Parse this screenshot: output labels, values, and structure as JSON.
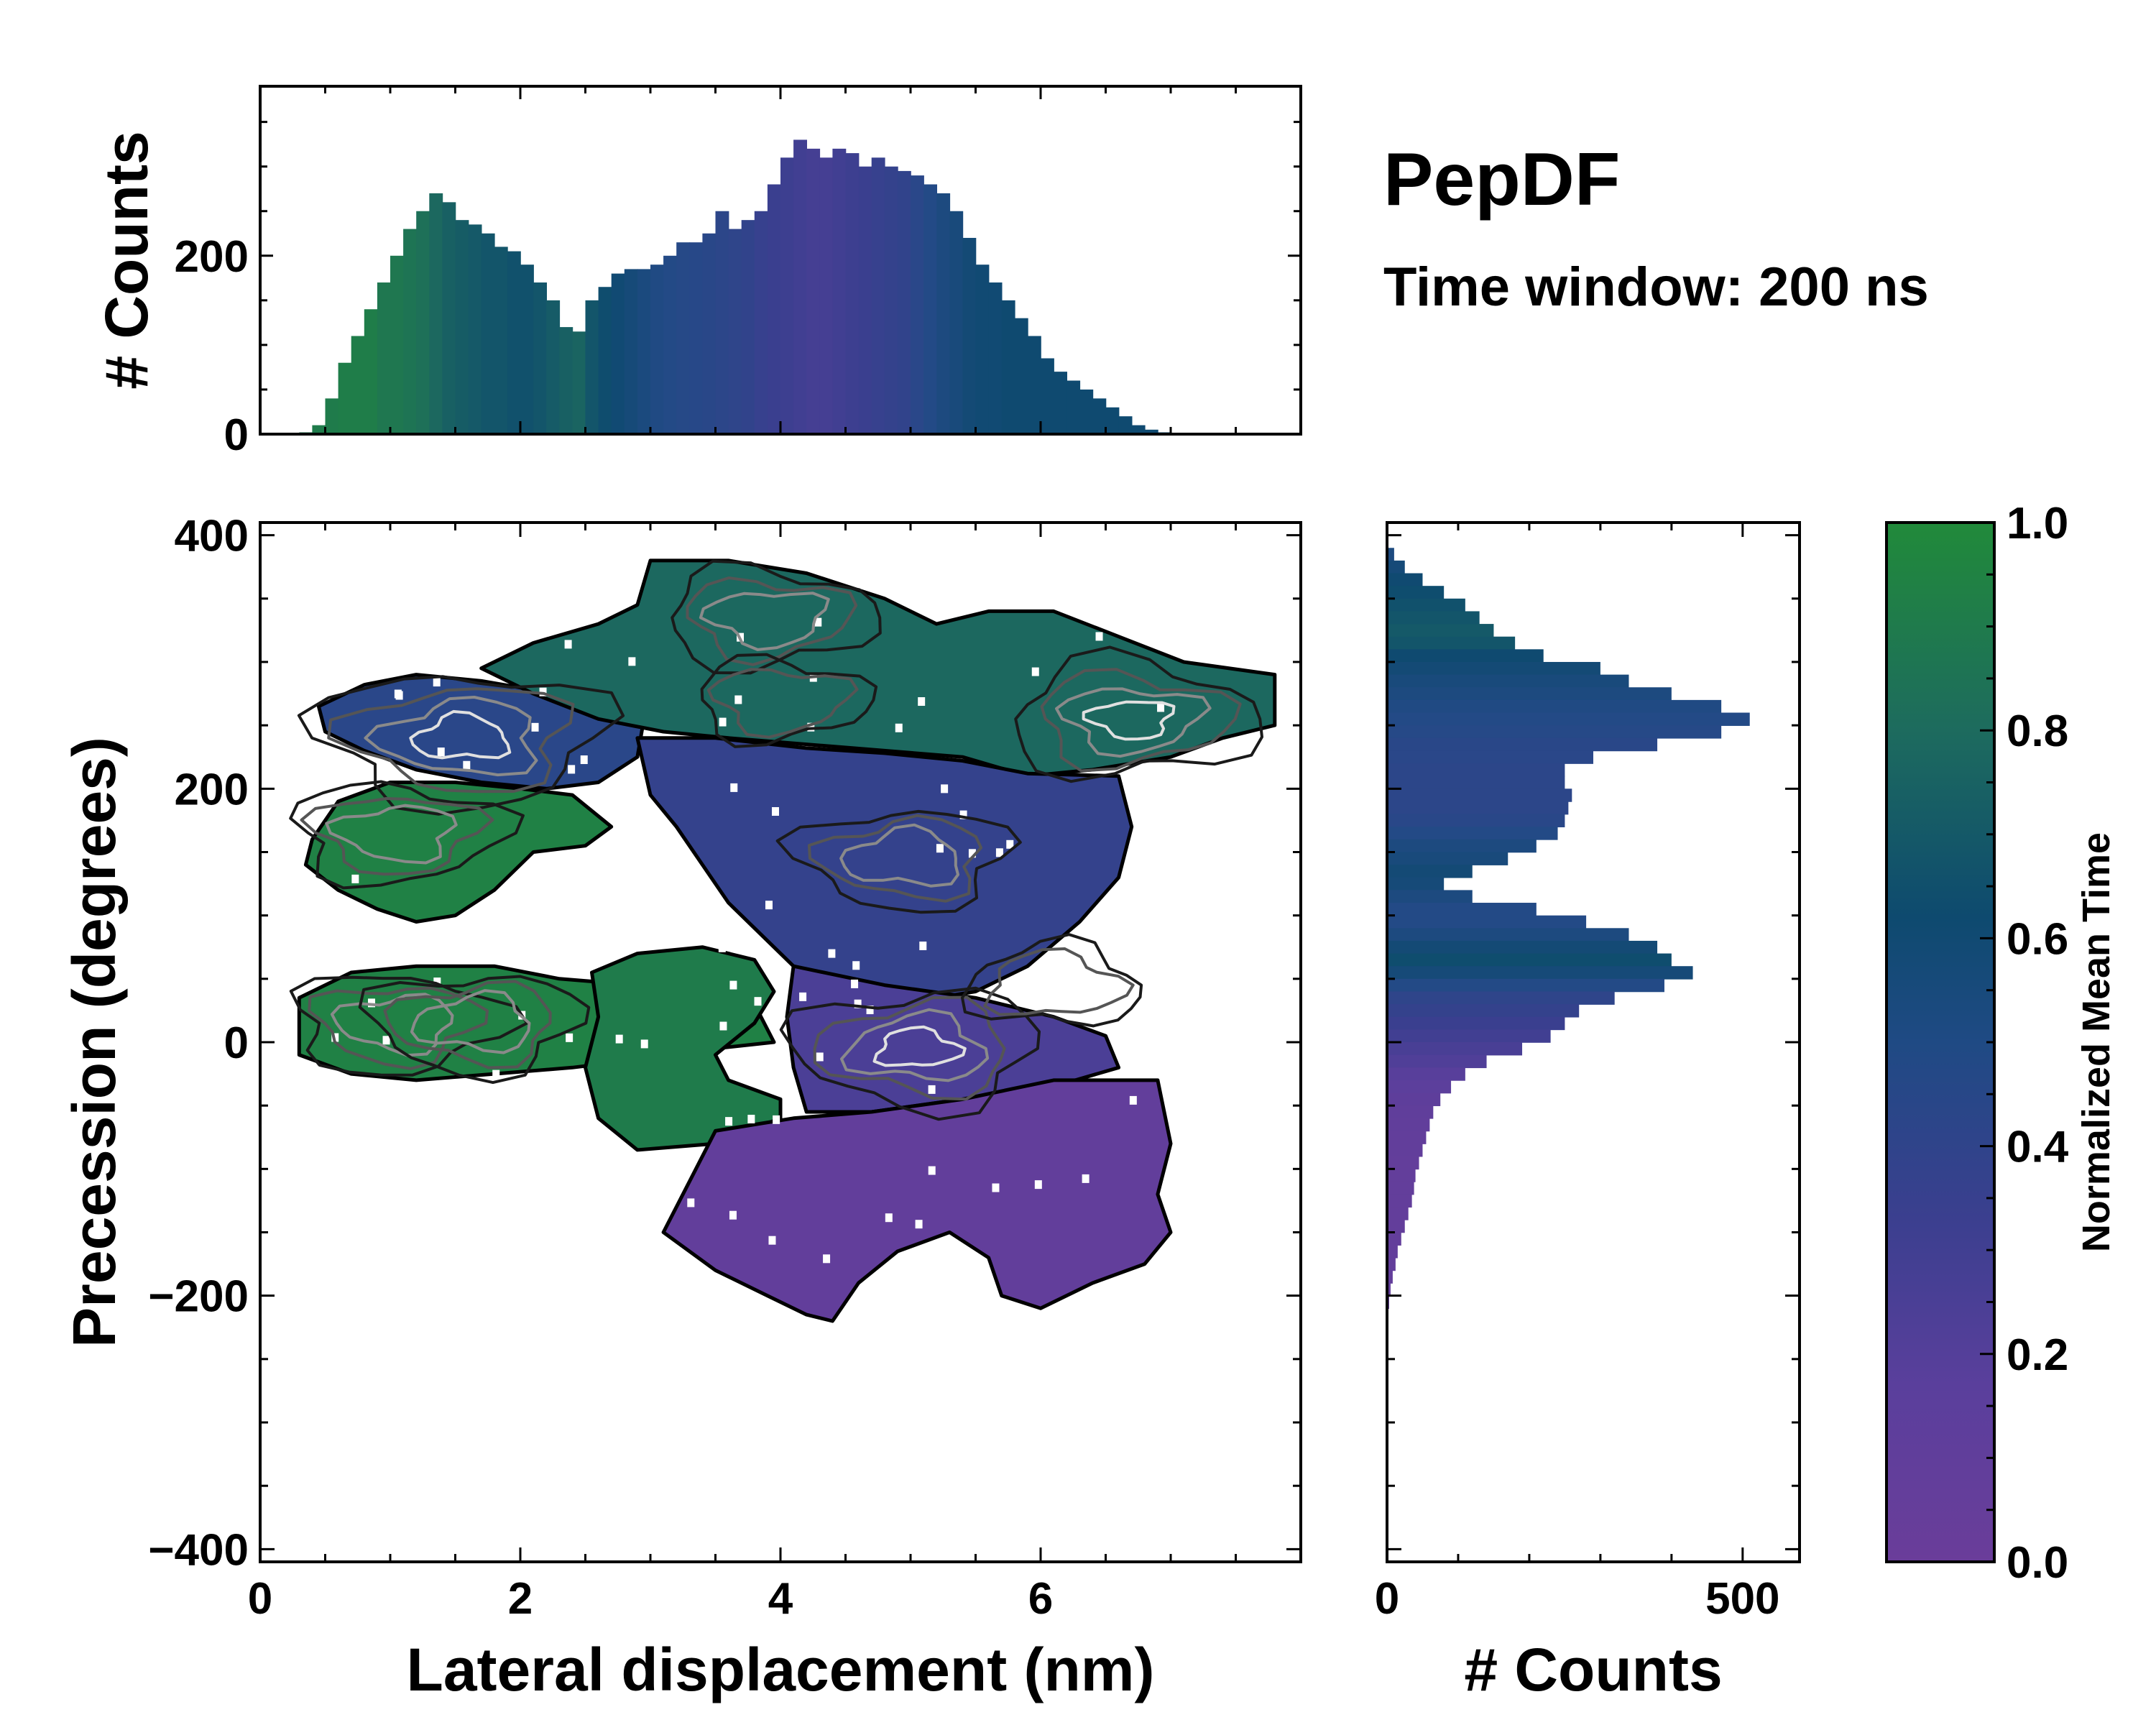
{
  "chart_data": [
    {
      "type": "histogram",
      "panel": "top-marginal",
      "title": "PepDF",
      "subtitle": "Time window: 200 ns",
      "xlabel": "",
      "ylabel": "# Counts",
      "xlim": [
        0,
        8
      ],
      "ylim": [
        0,
        390
      ],
      "yticks": [
        0,
        200
      ],
      "ytick_labels": [
        "0",
        "200"
      ],
      "bin_centers": [
        0.35,
        0.45,
        0.55,
        0.65,
        0.75,
        0.85,
        0.95,
        1.05,
        1.15,
        1.25,
        1.35,
        1.45,
        1.55,
        1.65,
        1.75,
        1.85,
        1.95,
        2.05,
        2.15,
        2.25,
        2.35,
        2.45,
        2.55,
        2.65,
        2.75,
        2.85,
        2.95,
        3.05,
        3.15,
        3.25,
        3.35,
        3.45,
        3.55,
        3.65,
        3.75,
        3.85,
        3.95,
        4.05,
        4.15,
        4.25,
        4.35,
        4.45,
        4.55,
        4.65,
        4.75,
        4.85,
        4.95,
        5.05,
        5.15,
        5.25,
        5.35,
        5.45,
        5.55,
        5.65,
        5.75,
        5.85,
        5.95,
        6.05,
        6.15,
        6.25,
        6.35,
        6.45,
        6.55,
        6.65,
        6.75,
        6.85,
        6.95,
        7.05,
        7.15,
        7.25,
        7.35,
        7.45,
        7.55,
        7.65,
        7.75,
        7.85
      ],
      "counts": [
        2,
        10,
        40,
        80,
        110,
        140,
        170,
        200,
        230,
        250,
        270,
        260,
        240,
        235,
        225,
        210,
        205,
        190,
        170,
        150,
        120,
        115,
        150,
        165,
        180,
        185,
        185,
        190,
        200,
        215,
        215,
        225,
        250,
        230,
        240,
        250,
        280,
        310,
        330,
        320,
        310,
        320,
        315,
        300,
        310,
        300,
        295,
        290,
        280,
        270,
        250,
        220,
        190,
        170,
        150,
        130,
        110,
        85,
        70,
        60,
        50,
        40,
        30,
        20,
        10,
        5,
        2,
        1,
        0,
        0,
        0,
        0,
        0,
        0,
        0,
        0
      ],
      "bar_colors": "normalized mean time per bin (colormap purple 0.0 to green 1.0)",
      "bin_norm_time": [
        0.9,
        0.92,
        0.92,
        0.93,
        0.93,
        0.93,
        0.9,
        0.9,
        0.88,
        0.86,
        0.82,
        0.78,
        0.76,
        0.74,
        0.72,
        0.72,
        0.7,
        0.7,
        0.72,
        0.75,
        0.78,
        0.8,
        0.72,
        0.68,
        0.64,
        0.6,
        0.56,
        0.52,
        0.5,
        0.48,
        0.47,
        0.46,
        0.44,
        0.42,
        0.4,
        0.36,
        0.34,
        0.32,
        0.3,
        0.28,
        0.28,
        0.3,
        0.32,
        0.34,
        0.36,
        0.38,
        0.4,
        0.45,
        0.5,
        0.55,
        0.58,
        0.62,
        0.64,
        0.64,
        0.66,
        0.66,
        0.66,
        0.66,
        0.66,
        0.66,
        0.66,
        0.66,
        0.66,
        0.66,
        0.66,
        0.66,
        0.66,
        0.66,
        0.66,
        0.66,
        0.66,
        0.66,
        0.66,
        0.66,
        0.66,
        0.66
      ]
    },
    {
      "type": "heatmap",
      "panel": "main",
      "xlabel": "Lateral displacement (nm)",
      "ylabel": "Precession (degrees)",
      "xlim": [
        0,
        8
      ],
      "ylim": [
        -410,
        410
      ],
      "xticks": [
        0,
        2,
        4,
        6
      ],
      "xtick_labels": [
        "0",
        "2",
        "4",
        "6"
      ],
      "yticks": [
        -400,
        -200,
        0,
        200,
        400
      ],
      "ytick_labels": [
        "−400",
        "−200",
        "0",
        "200",
        "400"
      ],
      "regions": [
        {
          "name": "upper-left-blue",
          "norm_time": 0.45,
          "polygon": [
            [
              0.45,
              265
            ],
            [
              0.8,
              282
            ],
            [
              1.2,
              290
            ],
            [
              1.7,
              285
            ],
            [
              2.1,
              278
            ],
            [
              2.5,
              270
            ],
            [
              2.95,
              255
            ],
            [
              2.9,
              225
            ],
            [
              2.6,
              205
            ],
            [
              2.2,
              200
            ],
            [
              1.7,
              205
            ],
            [
              1.2,
              215
            ],
            [
              0.8,
              230
            ],
            [
              0.5,
              245
            ]
          ]
        },
        {
          "name": "left-green-arm",
          "norm_time": 0.95,
          "polygon": [
            [
              0.4,
              160
            ],
            [
              0.6,
              190
            ],
            [
              1.0,
              205
            ],
            [
              1.5,
              205
            ],
            [
              2.0,
              200
            ],
            [
              2.4,
              195
            ],
            [
              2.7,
              170
            ],
            [
              2.5,
              155
            ],
            [
              2.1,
              150
            ],
            [
              1.8,
              120
            ],
            [
              1.5,
              100
            ],
            [
              1.2,
              95
            ],
            [
              0.9,
              105
            ],
            [
              0.6,
              120
            ],
            [
              0.35,
              140
            ]
          ]
        },
        {
          "name": "left-lower-green",
          "norm_time": 0.95,
          "polygon": [
            [
              0.3,
              35
            ],
            [
              0.7,
              55
            ],
            [
              1.2,
              60
            ],
            [
              1.8,
              60
            ],
            [
              2.3,
              50
            ],
            [
              2.9,
              45
            ],
            [
              3.3,
              35
            ],
            [
              3.8,
              30
            ],
            [
              3.95,
              0
            ],
            [
              3.5,
              -5
            ],
            [
              3.1,
              -10
            ],
            [
              2.8,
              -15
            ],
            [
              2.4,
              -20
            ],
            [
              1.8,
              -25
            ],
            [
              1.2,
              -30
            ],
            [
              0.7,
              -25
            ],
            [
              0.3,
              -10
            ]
          ]
        },
        {
          "name": "center-green-pocket",
          "norm_time": 0.92,
          "polygon": [
            [
              2.55,
              55
            ],
            [
              2.9,
              70
            ],
            [
              3.4,
              75
            ],
            [
              3.8,
              65
            ],
            [
              3.95,
              40
            ],
            [
              3.8,
              15
            ],
            [
              3.5,
              -10
            ],
            [
              3.6,
              -30
            ],
            [
              4.0,
              -45
            ],
            [
              4.0,
              -60
            ],
            [
              3.5,
              -80
            ],
            [
              2.9,
              -85
            ],
            [
              2.6,
              -60
            ],
            [
              2.5,
              -20
            ],
            [
              2.6,
              20
            ]
          ]
        },
        {
          "name": "top-band-green",
          "norm_time": 0.82,
          "polygon": [
            [
              1.7,
              295
            ],
            [
              2.1,
              315
            ],
            [
              2.6,
              330
            ],
            [
              2.9,
              345
            ],
            [
              3.0,
              380
            ],
            [
              3.6,
              380
            ],
            [
              4.2,
              370
            ],
            [
              4.8,
              350
            ],
            [
              5.2,
              330
            ],
            [
              5.6,
              340
            ],
            [
              6.1,
              340
            ],
            [
              6.6,
              320
            ],
            [
              7.1,
              300
            ],
            [
              7.8,
              290
            ],
            [
              7.8,
              250
            ],
            [
              7.4,
              240
            ],
            [
              7.0,
              225
            ],
            [
              6.4,
              215
            ],
            [
              5.9,
              210
            ],
            [
              5.4,
              225
            ],
            [
              4.8,
              230
            ],
            [
              4.2,
              235
            ],
            [
              3.6,
              240
            ],
            [
              3.1,
              245
            ],
            [
              2.6,
              255
            ],
            [
              2.1,
              275
            ]
          ]
        },
        {
          "name": "center-blue",
          "norm_time": 0.38,
          "polygon": [
            [
              2.9,
              240
            ],
            [
              3.5,
              240
            ],
            [
              4.2,
              232
            ],
            [
              4.8,
              228
            ],
            [
              5.4,
              222
            ],
            [
              5.9,
              212
            ],
            [
              6.6,
              210
            ],
            [
              6.7,
              170
            ],
            [
              6.6,
              130
            ],
            [
              6.3,
              95
            ],
            [
              5.9,
              60
            ],
            [
              5.5,
              40
            ],
            [
              4.9,
              30
            ],
            [
              4.3,
              40
            ],
            [
              4.0,
              70
            ],
            [
              3.6,
              110
            ],
            [
              3.4,
              140
            ],
            [
              3.2,
              170
            ],
            [
              3.0,
              195
            ]
          ]
        },
        {
          "name": "lower-center-indigo",
          "norm_time": 0.25,
          "polygon": [
            [
              4.1,
              60
            ],
            [
              4.8,
              45
            ],
            [
              5.5,
              35
            ],
            [
              6.1,
              20
            ],
            [
              6.5,
              5
            ],
            [
              6.6,
              -20
            ],
            [
              6.1,
              -35
            ],
            [
              5.4,
              -45
            ],
            [
              4.7,
              -55
            ],
            [
              4.2,
              -55
            ],
            [
              4.1,
              -20
            ],
            [
              4.05,
              20
            ]
          ]
        },
        {
          "name": "bottom-purple",
          "norm_time": 0.08,
          "polygon": [
            [
              3.5,
              -70
            ],
            [
              4.1,
              -60
            ],
            [
              4.7,
              -55
            ],
            [
              5.4,
              -45
            ],
            [
              6.1,
              -30
            ],
            [
              6.9,
              -30
            ],
            [
              7.0,
              -80
            ],
            [
              6.9,
              -120
            ],
            [
              7.0,
              -150
            ],
            [
              6.8,
              -175
            ],
            [
              6.4,
              -190
            ],
            [
              6.0,
              -210
            ],
            [
              5.7,
              -200
            ],
            [
              5.6,
              -170
            ],
            [
              5.3,
              -150
            ],
            [
              4.9,
              -165
            ],
            [
              4.6,
              -190
            ],
            [
              4.4,
              -220
            ],
            [
              4.2,
              -215
            ],
            [
              3.9,
              -200
            ],
            [
              3.5,
              -180
            ],
            [
              3.1,
              -150
            ],
            [
              3.3,
              -110
            ]
          ]
        }
      ],
      "contour_levels": [
        {
          "level": "low",
          "color": "#1a1a1a"
        },
        {
          "level": "mid",
          "color": "#555555"
        },
        {
          "level": "high",
          "color": "#8a8a8a"
        },
        {
          "level": "peak",
          "color": "#e0e0e0"
        }
      ],
      "peaks": [
        {
          "x": 1.55,
          "y": 240,
          "strength": 4
        },
        {
          "x": 1.05,
          "y": 165,
          "strength": 2
        },
        {
          "x": 1.05,
          "y": 15,
          "strength": 2
        },
        {
          "x": 1.65,
          "y": 15,
          "strength": 2
        },
        {
          "x": 3.9,
          "y": 335,
          "strength": 2
        },
        {
          "x": 4.95,
          "y": 145,
          "strength": 2
        },
        {
          "x": 5.05,
          "y": -5,
          "strength": 3
        },
        {
          "x": 6.7,
          "y": 255,
          "strength": 3
        },
        {
          "x": 4.0,
          "y": 270,
          "strength": 1
        },
        {
          "x": 6.1,
          "y": 45,
          "strength": 1
        }
      ]
    },
    {
      "type": "histogram",
      "panel": "right-marginal",
      "orientation": "horizontal",
      "xlabel": "# Counts",
      "ylabel": "",
      "xlim": [
        0,
        580
      ],
      "ylim": [
        -410,
        410
      ],
      "xticks": [
        0,
        500
      ],
      "xtick_labels": [
        "0",
        "500"
      ],
      "bin_centers": [
        395,
        385,
        375,
        365,
        355,
        345,
        335,
        325,
        315,
        305,
        295,
        285,
        275,
        265,
        255,
        245,
        235,
        225,
        215,
        205,
        195,
        185,
        175,
        165,
        155,
        145,
        135,
        125,
        115,
        105,
        95,
        85,
        75,
        65,
        55,
        45,
        35,
        25,
        15,
        5,
        -5,
        -15,
        -25,
        -35,
        -45,
        -55,
        -65,
        -75,
        -85,
        -95,
        -105,
        -115,
        -125,
        -135,
        -145,
        -155,
        -165,
        -175,
        -185,
        -195,
        -205,
        -215
      ],
      "counts": [
        2,
        10,
        25,
        50,
        80,
        110,
        130,
        150,
        180,
        220,
        300,
        340,
        400,
        470,
        510,
        470,
        380,
        290,
        250,
        250,
        260,
        255,
        250,
        240,
        210,
        170,
        120,
        80,
        120,
        210,
        280,
        340,
        380,
        400,
        430,
        390,
        320,
        270,
        250,
        230,
        190,
        140,
        110,
        90,
        75,
        65,
        60,
        55,
        50,
        45,
        40,
        38,
        35,
        30,
        25,
        20,
        15,
        12,
        8,
        5,
        3,
        1
      ],
      "bar_colors": "normalized mean time per bin",
      "bin_norm_time": [
        0.5,
        0.55,
        0.6,
        0.65,
        0.68,
        0.7,
        0.72,
        0.74,
        0.72,
        0.66,
        0.62,
        0.58,
        0.55,
        0.52,
        0.5,
        0.48,
        0.46,
        0.45,
        0.44,
        0.44,
        0.44,
        0.44,
        0.46,
        0.5,
        0.55,
        0.58,
        0.62,
        0.6,
        0.55,
        0.5,
        0.5,
        0.55,
        0.62,
        0.68,
        0.6,
        0.5,
        0.42,
        0.38,
        0.34,
        0.3,
        0.26,
        0.22,
        0.18,
        0.15,
        0.12,
        0.1,
        0.09,
        0.08,
        0.08,
        0.07,
        0.07,
        0.07,
        0.07,
        0.07,
        0.07,
        0.07,
        0.07,
        0.07,
        0.07,
        0.07,
        0.07,
        0.07
      ]
    },
    {
      "type": "colorbar",
      "label": "Normalized Mean Time",
      "range": [
        0.0,
        1.0
      ],
      "ticks": [
        0.0,
        0.2,
        0.4,
        0.6,
        0.8,
        1.0
      ],
      "tick_labels": [
        "0.0",
        "0.2",
        "0.4",
        "0.6",
        "0.8",
        "1.0"
      ],
      "colormap": [
        "#6a3d9a",
        "#5a3f9c",
        "#3b3f8f",
        "#234a86",
        "#0e4a6f",
        "#1d6b5e",
        "#218a3a"
      ]
    }
  ]
}
